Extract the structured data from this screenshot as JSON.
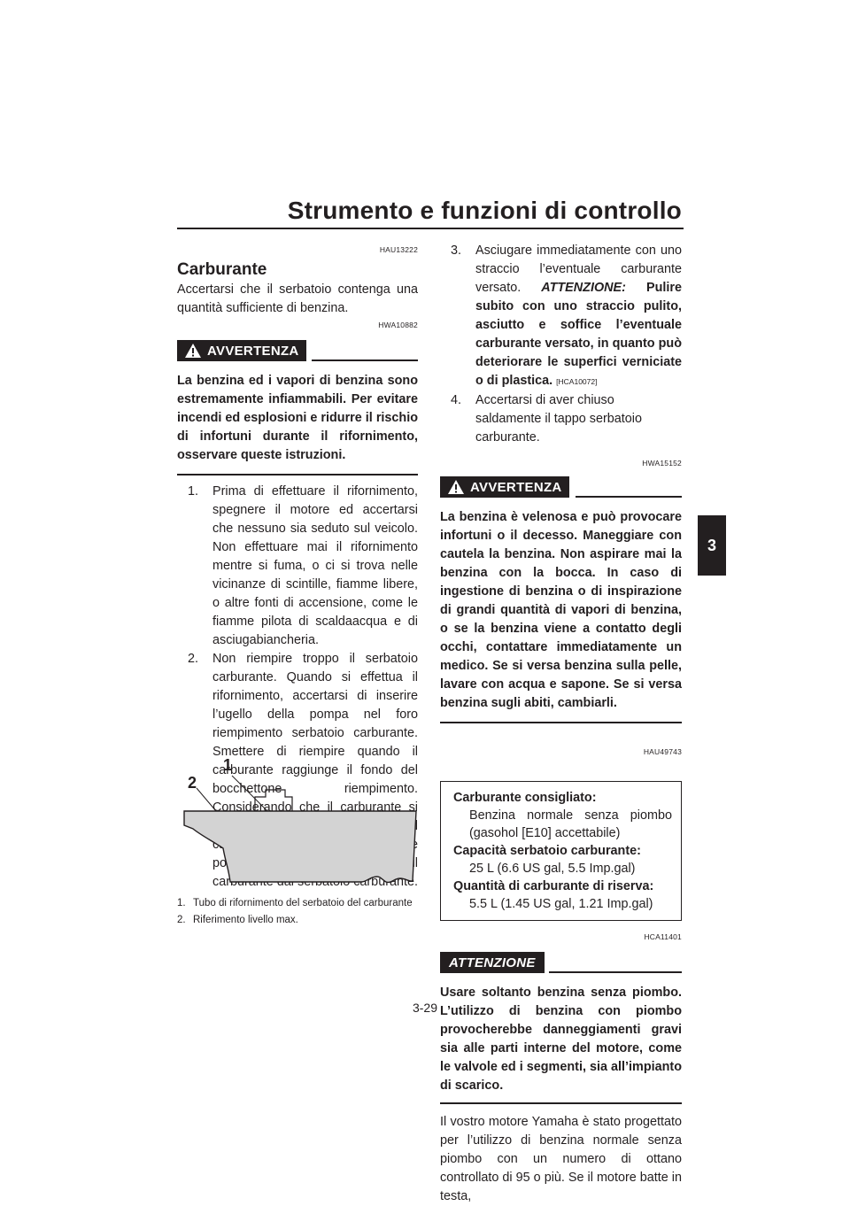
{
  "header": {
    "title": "Strumento e funzioni di controllo",
    "chapter_tab": "3"
  },
  "page_number": "3-29",
  "left": {
    "section_code": "HAU13222",
    "section_title": "Carburante",
    "intro": "Accertarsi che il serbatoio contenga una quantità sufficiente di benzina.",
    "warning_code": "HWA10882",
    "warning_label": "AVVERTENZA",
    "warning_text": "La benzina ed i vapori di benzina sono estremamente infiammabili. Per evitare incendi ed esplosioni e ridurre il rischio di infortuni durante il rifornimento, osservare queste istruzioni.",
    "steps": [
      {
        "n": "1.",
        "text": "Prima di effettuare il rifornimento, spegnere il motore ed accertarsi che nessuno sia seduto sul veicolo. Non effettuare mai il rifornimento mentre si fuma, o ci si trova nelle vicinanze di scintille, fiamme libere, o altre fonti di accensione, come le fiamme pilota di scaldaacqua e di asciugabiancheria."
      },
      {
        "n": "2.",
        "text": "Non riempire troppo il serbatoio carburante. Quando si effettua il rifornimento, accertarsi di inserire l’ugello della pompa nel foro riempimento serbatoio carburante. Smettere di riempire quando il carburante raggiunge il fondo del bocchettone riempimento. Considerando che il carburante si espande quando si riscalda, il calore del motore o del sole potrebbe fare traboccare il carburante dal serbatoio carburante."
      }
    ],
    "figure": {
      "label_1": "1",
      "label_2": "2",
      "captions": [
        {
          "n": "1.",
          "text": "Tubo di rifornimento del serbatoio del carburante"
        },
        {
          "n": "2.",
          "text": "Riferimento livello max."
        }
      ]
    }
  },
  "right": {
    "step3_n": "3.",
    "step3_text": "Asciugare immediatamente con uno straccio l’eventuale carburante versato.",
    "step3_attn_label": "ATTENZIONE:",
    "step3_attn_text": "Pulire subito con uno straccio pulito, asciutto e soffice l’eventuale carburante versato, in quanto può deteriorare le superfici verniciate o di plastica.",
    "step3_code": "[HCA10072]",
    "step4_n": "4.",
    "step4_text": "Accertarsi di aver chiuso saldamente il tappo serbatoio carburante.",
    "warning_code": "HWA15152",
    "warning_label": "AVVERTENZA",
    "warning_text": "La benzina è velenosa e può provocare infortuni o il decesso. Maneggiare con cautela la benzina. Non aspirare mai la benzina con la bocca. In caso di ingestione di benzina o di inspirazione di grandi quantità di vapori di benzina, o se la benzina viene a contatto degli occhi, contattare immediatamente un medico. Se si versa benzina sulla pelle, lavare con acqua e sapone. Se si versa benzina sugli abiti, cambiarli.",
    "spec_code": "HAU49743",
    "spec": [
      {
        "label": "Carburante consigliato:",
        "value": "Benzina normale senza piombo (gasohol [E10] accettabile)"
      },
      {
        "label": "Capacità serbatoio carburante:",
        "value": "25 L (6.6 US gal, 5.5 Imp.gal)"
      },
      {
        "label": "Quantità di carburante di riserva:",
        "value": "5.5 L (1.45 US gal, 1.21 Imp.gal)"
      }
    ],
    "caution_code": "HCA11401",
    "caution_label": "ATTENZIONE",
    "caution_text": "Usare soltanto benzina senza piombo. L’utilizzo di benzina con piombo provocherebbe danneggiamenti gravi sia alle parti interne del motore, come le valvole ed i segmenti, sia all’impianto di scarico.",
    "closing": "Il vostro motore Yamaha è stato progettato per l’utilizzo di benzina normale senza piombo con un numero di ottano controllato di 95 o più. Se il motore batte in testa,"
  }
}
